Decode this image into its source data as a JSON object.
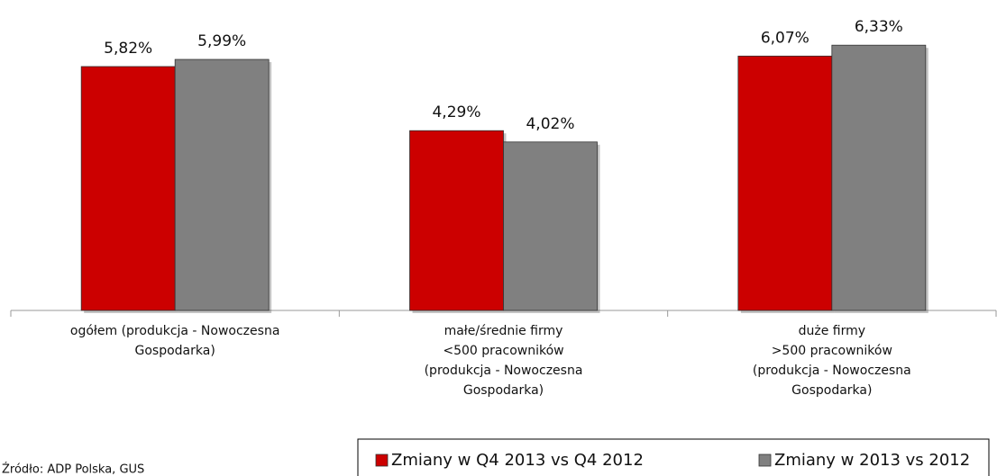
{
  "chart_data": {
    "type": "bar",
    "categories": [
      "ogółem (produkcja - Nowoczesna\nGospodarka)",
      "małe/średnie firmy\n<500 pracowników\n(produkcja - Nowoczesna\nGospodarka)",
      "duże firmy\n>500 pracowników\n(produkcja - Nowoczesna\nGospodarka)"
    ],
    "series": [
      {
        "name": "Zmiany w Q4 2013 vs Q4 2012",
        "color": "#cc0000",
        "values": [
          5.82,
          4.29,
          6.07
        ],
        "value_labels": [
          "5,82%",
          "4,29%",
          "6,07%"
        ]
      },
      {
        "name": "Zmiany w 2013 vs 2012",
        "color": "#808080",
        "values": [
          5.99,
          4.02,
          6.33
        ],
        "value_labels": [
          "5,99%",
          "4,02%",
          "6,33%"
        ]
      }
    ],
    "ylim": [
      0,
      7
    ],
    "source": "Źródło: ADP Polska, GUS"
  }
}
